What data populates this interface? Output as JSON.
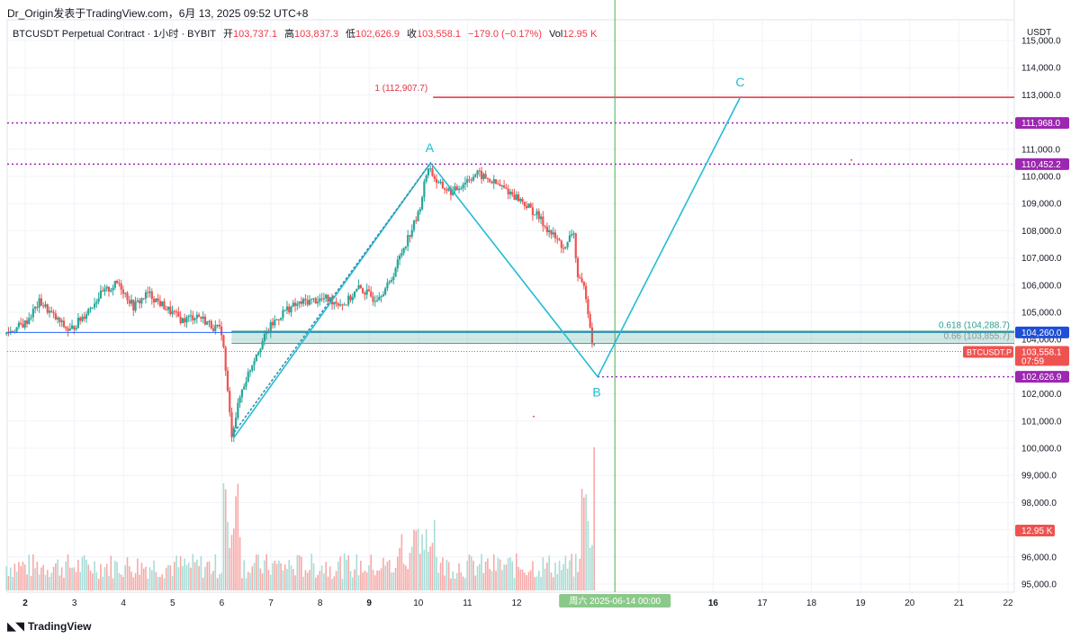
{
  "credit": "Dr_Origin发表于TradingView.com，6月 13, 2025 09:52 UTC+8",
  "legend": {
    "symbol": "BTCUSDT Perpetual Contract · 1小时 · BYBIT",
    "open_label": "开",
    "open": "103,737.1",
    "high_label": "高",
    "high": "103,837.3",
    "low_label": "低",
    "low": "102,626.9",
    "close_label": "收",
    "close": "103,558.1",
    "change": "−179.0 (−0.17%)",
    "vol_label": "Vol",
    "vol": "12.95 K"
  },
  "axis_unit": "USDT",
  "footer": {
    "logo_text": "TradingView"
  },
  "colors": {
    "up": "#26a69a",
    "down": "#ef5350",
    "wave": "#22bcd6",
    "level_red": "#e0323e",
    "level_purple": "#9c27b0",
    "fib_band": "#2a9d8f",
    "price_line": "#2962ff",
    "vline": "#4caf50"
  },
  "chart_data": {
    "type": "candlestick",
    "y_range": [
      95000,
      116000
    ],
    "y_ticks": [
      "95,000.0",
      "96,000.0",
      "98,000.0",
      "99,000.0",
      "100,000.0",
      "101,000.0",
      "102,000.0",
      "104,000.0",
      "105,000.0",
      "106,000.0",
      "107,000.0",
      "108,000.0",
      "109,000.0",
      "110,000.0",
      "111,000.0",
      "113,000.0",
      "114,000.0",
      "115,000.0"
    ],
    "x_ticks": [
      {
        "d": 2,
        "label": "2",
        "bold": true
      },
      {
        "d": 3,
        "label": "3"
      },
      {
        "d": 4,
        "label": "4"
      },
      {
        "d": 5,
        "label": "5"
      },
      {
        "d": 6,
        "label": "6"
      },
      {
        "d": 7,
        "label": "7"
      },
      {
        "d": 8,
        "label": "8"
      },
      {
        "d": 9,
        "label": "9",
        "bold": true
      },
      {
        "d": 10,
        "label": "10"
      },
      {
        "d": 11,
        "label": "11"
      },
      {
        "d": 12,
        "label": "12"
      },
      {
        "d": 16,
        "label": "16",
        "bold": true
      },
      {
        "d": 17,
        "label": "17"
      },
      {
        "d": 18,
        "label": "18"
      },
      {
        "d": 19,
        "label": "19"
      },
      {
        "d": 20,
        "label": "20"
      },
      {
        "d": 21,
        "label": "21"
      },
      {
        "d": 22,
        "label": "22"
      }
    ],
    "time_cursor": {
      "d": 14.0,
      "label": "周六 2025-06-14  00:00"
    },
    "price_path": [
      [
        1.6,
        104200
      ],
      [
        2.0,
        104600
      ],
      [
        2.3,
        105400
      ],
      [
        2.6,
        104800
      ],
      [
        2.9,
        104300
      ],
      [
        3.2,
        104900
      ],
      [
        3.5,
        105600
      ],
      [
        3.9,
        106100
      ],
      [
        4.2,
        105200
      ],
      [
        4.5,
        105700
      ],
      [
        4.9,
        105100
      ],
      [
        5.2,
        104700
      ],
      [
        5.5,
        104900
      ],
      [
        5.8,
        104500
      ],
      [
        6.0,
        104300
      ],
      [
        6.05,
        103400
      ],
      [
        6.2,
        100500
      ],
      [
        6.4,
        102100
      ],
      [
        6.7,
        103500
      ],
      [
        7.0,
        104500
      ],
      [
        7.3,
        105100
      ],
      [
        7.7,
        105400
      ],
      [
        8.1,
        105500
      ],
      [
        8.5,
        105300
      ],
      [
        8.8,
        105900
      ],
      [
        9.1,
        105500
      ],
      [
        9.4,
        106000
      ],
      [
        9.7,
        107400
      ],
      [
        10.0,
        108600
      ],
      [
        10.2,
        110400
      ],
      [
        10.4,
        109700
      ],
      [
        10.7,
        109400
      ],
      [
        11.0,
        109900
      ],
      [
        11.2,
        110100
      ],
      [
        11.5,
        109800
      ],
      [
        11.8,
        109500
      ],
      [
        12.1,
        109100
      ],
      [
        12.4,
        108600
      ],
      [
        12.7,
        107900
      ],
      [
        13.0,
        107300
      ],
      [
        13.15,
        108100
      ],
      [
        13.25,
        106200
      ],
      [
        13.4,
        105800
      ],
      [
        13.55,
        103800
      ],
      [
        13.62,
        103558
      ]
    ],
    "volume": {
      "scale_top": 12950
    },
    "wave_abc": [
      {
        "label": "A",
        "d": 10.25,
        "price": 110500
      },
      {
        "label": "B",
        "d": 13.65,
        "price": 102630
      },
      {
        "label": "C",
        "d": 16.55,
        "price": 112907.7
      }
    ],
    "wave_start": {
      "d": 6.2,
      "price": 100450
    },
    "wave_line_start": {
      "d": 6.25,
      "price": 100400
    },
    "levels": [
      {
        "name": "fib-1",
        "price": 112907.7,
        "text": "1 (112,907.7)",
        "color": "red",
        "from_d": 10.3
      },
      {
        "name": "resistance-1",
        "price": 111968.0,
        "tag": "111,968.0",
        "color": "purple",
        "style": "dotted"
      },
      {
        "name": "resistance-2",
        "price": 110452.2,
        "tag": "110,452.2",
        "color": "purple",
        "style": "dotted"
      },
      {
        "name": "support-low",
        "price": 102626.9,
        "tag": "102,626.9",
        "color": "purple",
        "style": "dotted",
        "from_d": 13.65
      }
    ],
    "fib_zone": {
      "top": 104288.7,
      "bottom": 103855.7,
      "top_label": "0.618 (104,288.7)",
      "bottom_label": "0.66 (103,855.7)",
      "from_d": 6.2
    },
    "blue_line": {
      "price": 104260.0,
      "tag": "104,260.0"
    },
    "last_price": {
      "price": 103558.1,
      "tag": "103,558.1",
      "symbol_tag": "BTCUSDT.P",
      "countdown": "07:59"
    },
    "volume_tag": "12.95 K"
  }
}
